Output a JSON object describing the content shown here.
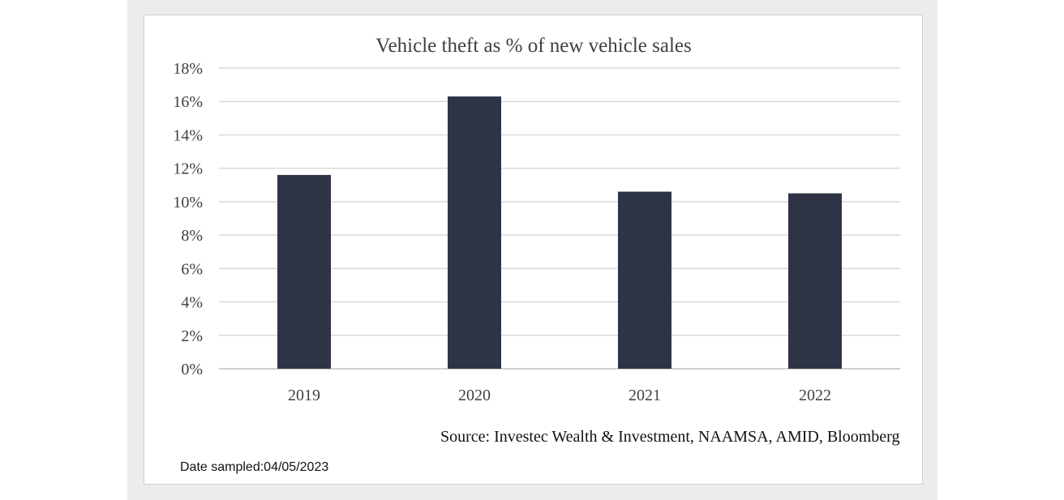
{
  "chart_data": {
    "type": "bar",
    "title": "Vehicle theft as % of new vehicle sales",
    "categories": [
      "2019",
      "2020",
      "2021",
      "2022"
    ],
    "values": [
      11.6,
      16.3,
      10.6,
      10.5
    ],
    "ylim": [
      0,
      18
    ],
    "ytick_step": 2,
    "ytick_suffix": "%",
    "xlabel": "",
    "ylabel": "",
    "grid": true,
    "bar_color": "#2e3446",
    "grid_color": "#d9d9d9"
  },
  "source": "Source: Investec Wealth & Investment, NAAMSA, AMID, Bloomberg",
  "date_sampled": "Date sampled:04/05/2023"
}
